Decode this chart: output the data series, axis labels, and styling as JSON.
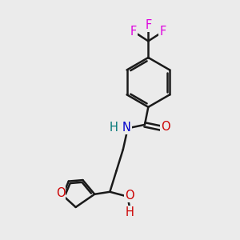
{
  "background_color": "#ebebeb",
  "bond_color": "#1a1a1a",
  "bond_width": 1.8,
  "atom_colors": {
    "F": "#dd00dd",
    "O": "#cc0000",
    "N": "#0000cc",
    "H_on_N": "#007777",
    "H_on_O": "#cc0000",
    "C": "#1a1a1a"
  },
  "font_size_atoms": 10.5,
  "figsize": [
    3.0,
    3.0
  ],
  "dpi": 100
}
